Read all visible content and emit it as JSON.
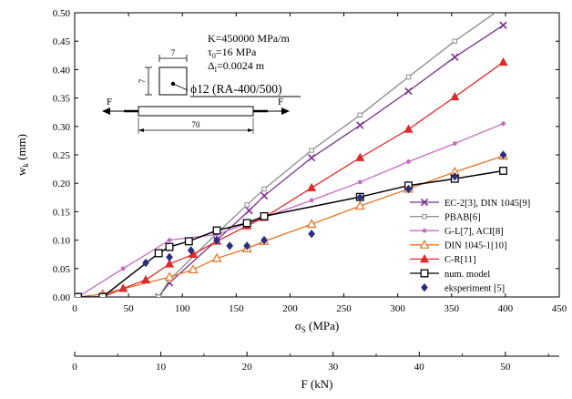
{
  "chart_data": {
    "type": "line",
    "xlabel": "σ",
    "xlabel_sub": "S",
    "xlabel_unit": " (MPa)",
    "ylabel": "w",
    "ylabel_sub": "k",
    "ylabel_unit": " (mm)",
    "xlim": [
      0,
      450
    ],
    "ylim": [
      0,
      0.5
    ],
    "x_ticks": [
      "0",
      "50",
      "100",
      "150",
      "200",
      "250",
      "300",
      "350",
      "400",
      "450"
    ],
    "x_tick_values": [
      0,
      50,
      100,
      150,
      200,
      250,
      300,
      350,
      400,
      450
    ],
    "y_ticks": [
      "0.00",
      "0.05",
      "0.10",
      "0.15",
      "0.20",
      "0.25",
      "0.30",
      "0.35",
      "0.40",
      "0.45",
      "0.50"
    ],
    "y_tick_values": [
      0,
      0.05,
      0.1,
      0.15,
      0.2,
      0.25,
      0.3,
      0.35,
      0.4,
      0.45,
      0.5
    ],
    "secondary_axis": {
      "label": "F (kN)",
      "ticks": [
        "0",
        "10",
        "20",
        "30",
        "40",
        "50"
      ],
      "tick_values": [
        0,
        10,
        20,
        30,
        40,
        50
      ],
      "range": [
        0,
        56.25
      ]
    },
    "legend_position": "lower-right",
    "series": [
      {
        "name": "EC-2[3], DIN 1045[9]",
        "color": "#7b2d8e",
        "marker": "x",
        "x": [
          78,
          88,
          132,
          162,
          176,
          220,
          265,
          310,
          353,
          398
        ],
        "y": [
          0.0,
          0.025,
          0.1,
          0.152,
          0.178,
          0.245,
          0.302,
          0.362,
          0.422,
          0.478
        ]
      },
      {
        "name": "PBAB[6]",
        "color": "#8c8c8c",
        "marker": "small-square",
        "x": [
          78,
          88,
          132,
          160,
          176,
          220,
          265,
          310,
          353,
          398
        ],
        "y": [
          0.0,
          0.03,
          0.112,
          0.162,
          0.19,
          0.258,
          0.32,
          0.387,
          0.45,
          0.51
        ]
      },
      {
        "name": "G-L[7], ACI[8]",
        "color": "#c46bc4",
        "marker": "dot",
        "x": [
          3,
          45,
          88,
          132,
          176,
          220,
          265,
          310,
          353,
          398
        ],
        "y": [
          0.0,
          0.05,
          0.1,
          0.11,
          0.14,
          0.17,
          0.202,
          0.238,
          0.27,
          0.305
        ]
      },
      {
        "name": "DIN 1045-1[10]",
        "color": "#e8711e",
        "marker": "open-triangle",
        "x": [
          3,
          26,
          88,
          110,
          132,
          160,
          176,
          220,
          265,
          310,
          353,
          398
        ],
        "y": [
          0.0,
          0.005,
          0.035,
          0.048,
          0.068,
          0.085,
          0.098,
          0.128,
          0.16,
          0.19,
          0.22,
          0.248
        ]
      },
      {
        "name": "C-R[11]",
        "color": "#e02a2a",
        "marker": "filled-triangle",
        "x": [
          26,
          45,
          66,
          88,
          110,
          132,
          160,
          176,
          220,
          265,
          310,
          353,
          398
        ],
        "y": [
          0.0,
          0.015,
          0.03,
          0.058,
          0.075,
          0.098,
          0.125,
          0.14,
          0.192,
          0.245,
          0.295,
          0.352,
          0.413
        ]
      },
      {
        "name": "num. model",
        "color": "#000000",
        "marker": "open-square",
        "x": [
          3,
          26,
          78,
          88,
          106,
          132,
          160,
          176,
          265,
          310,
          353,
          398
        ],
        "y": [
          0.0,
          0.0,
          0.077,
          0.088,
          0.098,
          0.117,
          0.13,
          0.142,
          0.176,
          0.196,
          0.208,
          0.222
        ]
      },
      {
        "name": "eksperiment [5]",
        "color": "#2b2d7e",
        "marker": "diamond",
        "line": false,
        "x": [
          66,
          88,
          108,
          132,
          144,
          160,
          176,
          220,
          265,
          310,
          353,
          398
        ],
        "y": [
          0.06,
          0.07,
          0.082,
          0.1,
          0.09,
          0.09,
          0.1,
          0.111,
          0.175,
          0.19,
          0.212,
          0.25
        ]
      }
    ],
    "annotations": {
      "lines": [
        {
          "text": "K=450000 MPa/m"
        },
        {
          "main": "τ",
          "sub": "0",
          "rest": "=16 MPa"
        },
        {
          "main": "Δ",
          "sub": "l",
          "rest": "=0.0024 m"
        }
      ],
      "bar_label": "ϕ12 (RA-400/500)",
      "dim_small": "7",
      "dim_length": "70",
      "force_left": "F",
      "force_right": "F"
    }
  }
}
